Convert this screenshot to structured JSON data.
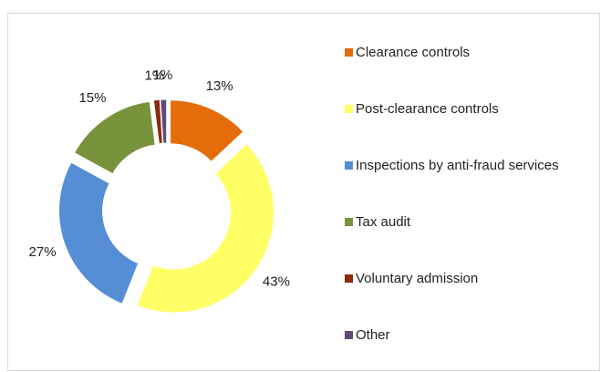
{
  "chart_data": {
    "type": "donut",
    "categories": [
      "Clearance controls",
      "Post-clearance controls",
      "Inspections by anti-fraud services",
      "Tax audit",
      "Voluntary admission",
      "Other"
    ],
    "values": [
      13,
      43,
      27,
      15,
      1,
      1
    ],
    "value_labels": [
      "13%",
      "43%",
      "27%",
      "15%",
      "1%",
      "1%"
    ],
    "colors": [
      "#e46c0a",
      "#ffff66",
      "#558ed5",
      "#77933c",
      "#8b2a0c",
      "#604a7b"
    ],
    "legend": "right"
  }
}
